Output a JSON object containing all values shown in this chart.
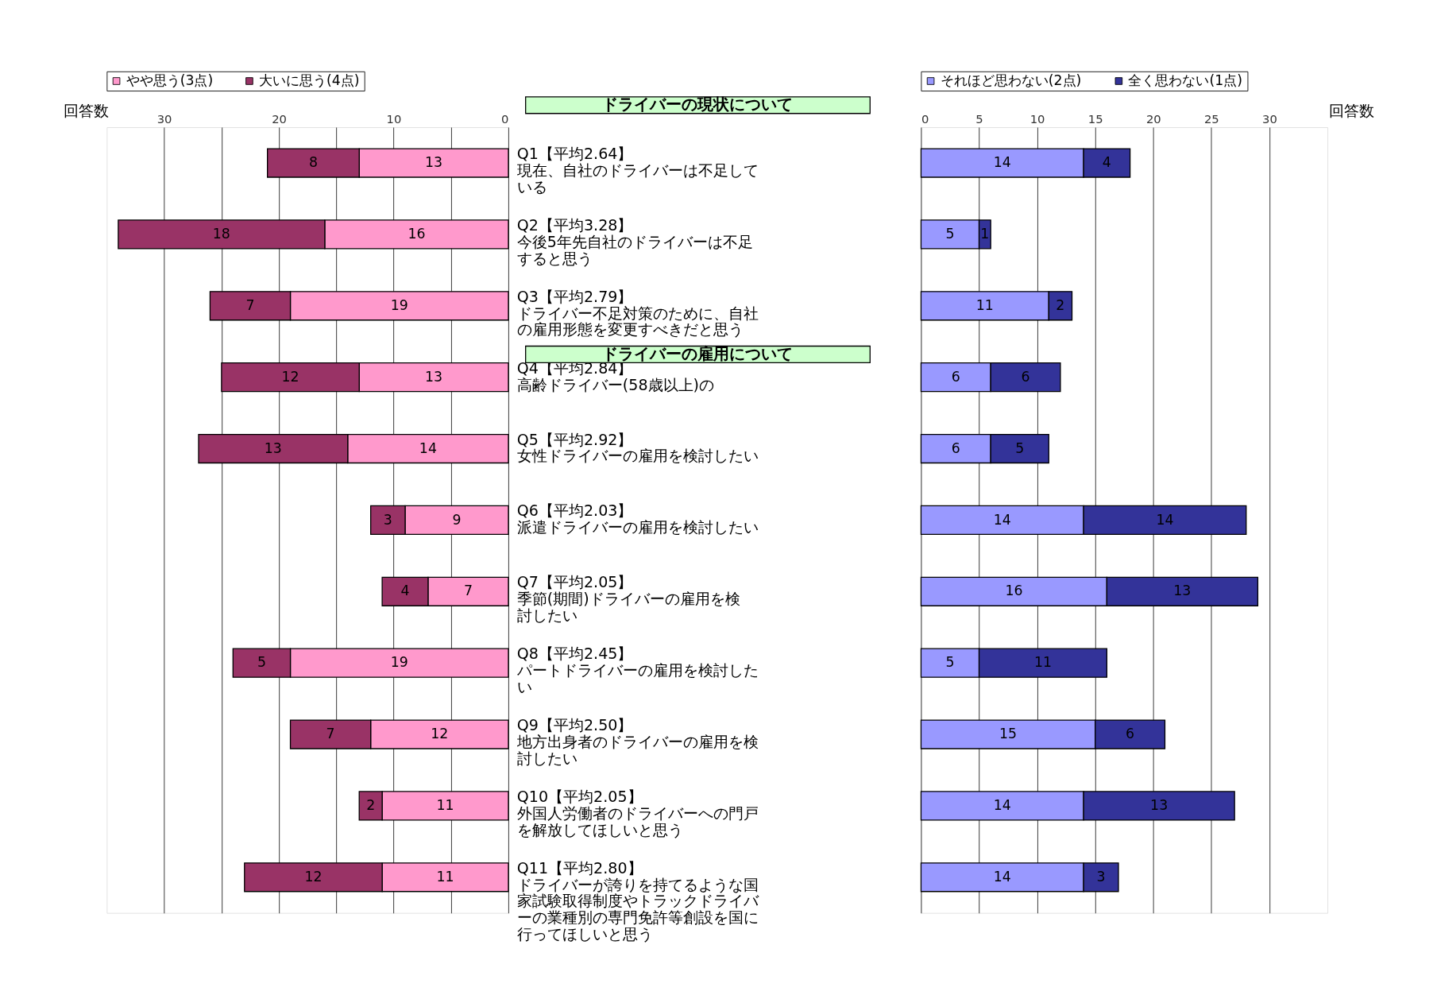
{
  "chart_data": [
    {
      "type": "bar",
      "orientation": "horizontal",
      "stacked": true,
      "xlabel": "回答数",
      "categories": [
        "Q1【平均2.64】現在、自社のドライバーは不足している",
        "Q2【平均3.28】今後5年先自社のドライバーは不足すると思う",
        "Q3【平均2.79】ドライバー不足対策のために、自社の雇用形態を変更すべきだと思う",
        "Q4【平均2.84】高齢ドライバー(58歳以上)の",
        "Q5【平均2.92】女性ドライバーの雇用を検討したい",
        "Q6【平均2.03】派遣ドライバーの雇用を検討したい",
        "Q7【平均2.05】季節(期間)ドライバーの雇用を検討したい",
        "Q8【平均2.45】パートドライバーの雇用を検討したい",
        "Q9【平均2.50】地方出身者のドライバーの雇用を検討したい",
        "Q10【平均2.05】外国人労働者のドライバーへの門戸を解放してほしいと思う",
        "Q11【平均2.80】ドライバーが誇りを持てるような国家試験取得制度やトラックドライバーの業種別の専門免許等創設を国に行ってほしいと思う"
      ],
      "series": [
        {
          "name": "やや思う(3点)",
          "color": "#ff99cc",
          "values": [
            13,
            16,
            19,
            13,
            14,
            9,
            7,
            19,
            12,
            11,
            11
          ]
        },
        {
          "name": "大いに思う(4点)",
          "color": "#993366",
          "values": [
            8,
            18,
            7,
            12,
            13,
            3,
            4,
            5,
            7,
            2,
            12
          ]
        }
      ],
      "xlim": [
        35,
        0
      ],
      "xticks": [
        30,
        {
          "value": 25,
          "label": null
        },
        20,
        {
          "value": 15,
          "label": null
        },
        10,
        {
          "value": 5,
          "label": null
        },
        0
      ],
      "grid": "x",
      "legend": "top",
      "data_labels": true,
      "annotations": [
        "ドライバーの現状について",
        "ドライバーの雇用について"
      ]
    },
    {
      "type": "bar",
      "orientation": "horizontal",
      "stacked": true,
      "xlabel": "回答数",
      "tick_labels": "x",
      "categories": [
        "Q1【平均2.64】現在、自社のドライバーは不足している",
        "Q2【平均3.28】今後5年先自社のドライバーは不足すると思う",
        "Q3【平均2.79】ドライバー不足対策のために、自社の雇用形態を変更すべきだと思う",
        "Q4【平均2.84】高齢ドライバー(58歳以上)の",
        "Q5【平均2.92】女性ドライバーの雇用を検討したい",
        "Q6【平均2.03】派遣ドライバーの雇用を検討したい",
        "Q7【平均2.05】季節(期間)ドライバーの雇用を検討したい",
        "Q8【平均2.45】パートドライバーの雇用を検討したい",
        "Q9【平均2.50】地方出身者のドライバーの雇用を検討したい",
        "Q10【平均2.05】外国人労働者のドライバーへの門戸を解放してほしいと思う",
        "Q11【平均2.80】ドライバーが誇りを持てるような国家試験取得制度やトラックドライバーの業種別の専門免許等創設を国に行ってほしいと思う"
      ],
      "series": [
        {
          "name": "それほど思わない(2点)",
          "color": "#9999ff",
          "values": [
            14,
            5,
            11,
            6,
            6,
            14,
            16,
            5,
            15,
            14,
            14
          ]
        },
        {
          "name": "全く思わない(1点)",
          "color": "#333399",
          "values": [
            4,
            1,
            2,
            6,
            5,
            14,
            13,
            11,
            6,
            13,
            3
          ]
        }
      ],
      "xlim": [
        0,
        35
      ],
      "xticks": [
        0,
        5,
        10,
        15,
        20,
        25,
        30
      ],
      "grid": "x",
      "legend": "top",
      "data_labels": true
    }
  ]
}
